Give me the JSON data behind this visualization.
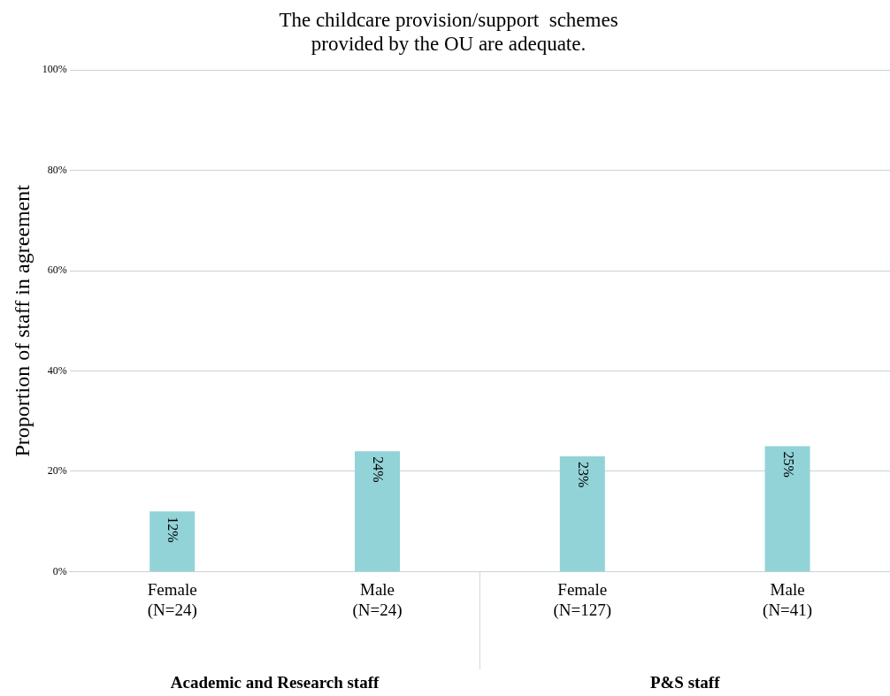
{
  "chart_data": {
    "type": "bar",
    "title": "The childcare provision/support  schemes\nprovided by the OU are adequate.",
    "ylabel": "Proportion of staff in agreement",
    "categories": [
      "Female\n(N=24)",
      "Male\n(N=24)",
      "Female\n(N=127)",
      "Male\n(N=41)"
    ],
    "values": [
      12,
      24,
      23,
      25
    ],
    "value_labels": [
      "12%",
      "24%",
      "23%",
      "25%"
    ],
    "color": "#92d3d8",
    "ylim": [
      0,
      100
    ],
    "yticks": [
      {
        "value": 0,
        "label": "0%"
      },
      {
        "value": 20,
        "label": "20%"
      },
      {
        "value": 40,
        "label": "40%"
      },
      {
        "value": 60,
        "label": "60%"
      },
      {
        "value": 80,
        "label": "80%"
      },
      {
        "value": 100,
        "label": "100%"
      }
    ],
    "grid": "y",
    "legend": false,
    "annotations": [
      "Academic and Research staff",
      "P&S staff"
    ]
  }
}
